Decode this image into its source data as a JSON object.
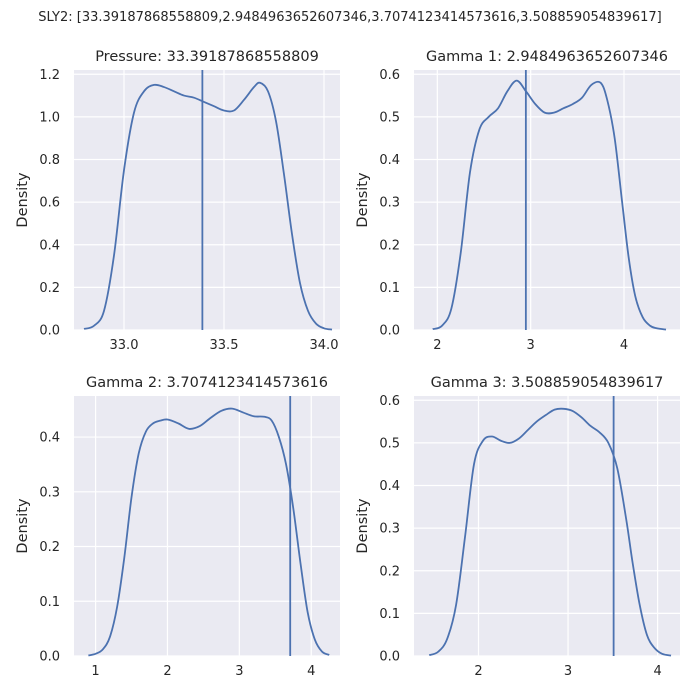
{
  "suptitle": "SLY2: [33.39187868558809,2.9484963652607346,3.7074123414573616,3.508859054839617]",
  "style": {
    "panel_bg": "#eaeaf2",
    "grid": "#ffffff",
    "line": "#4c72b0",
    "text": "#262626"
  },
  "chart_data": [
    {
      "type": "line",
      "title": "Pressure: 33.39187868558809",
      "xlabel": "",
      "ylabel": "Density",
      "xlim": [
        32.75,
        34.08
      ],
      "ylim": [
        0,
        1.22
      ],
      "xticks": [
        33.0,
        33.5,
        34.0
      ],
      "xtick_labels": [
        "33.0",
        "33.5",
        "34.0"
      ],
      "yticks": [
        0,
        0.2,
        0.4,
        0.6,
        0.8,
        1.0,
        1.2
      ],
      "ytick_labels": [
        "0.0",
        "0.2",
        "0.4",
        "0.6",
        "0.8",
        "1.0",
        "1.2"
      ],
      "grid": true,
      "vline": 33.39187868558809,
      "series": [
        {
          "x": [
            32.8,
            32.85,
            32.9,
            32.95,
            33.0,
            33.05,
            33.1,
            33.15,
            33.2,
            33.25,
            33.3,
            33.35,
            33.4,
            33.45,
            33.5,
            33.55,
            33.6,
            33.65,
            33.68,
            33.72,
            33.76,
            33.8,
            33.84,
            33.88,
            33.92,
            33.96,
            34.0,
            34.04
          ],
          "y": [
            0.005,
            0.02,
            0.09,
            0.35,
            0.75,
            1.02,
            1.12,
            1.15,
            1.14,
            1.12,
            1.1,
            1.09,
            1.07,
            1.05,
            1.03,
            1.03,
            1.08,
            1.14,
            1.16,
            1.12,
            0.98,
            0.73,
            0.45,
            0.22,
            0.09,
            0.03,
            0.008,
            0.002
          ]
        }
      ]
    },
    {
      "type": "line",
      "title": "Gamma 1: 2.9484963652607346",
      "xlabel": "",
      "ylabel": "Density",
      "xlim": [
        1.75,
        4.6
      ],
      "ylim": [
        0,
        0.61
      ],
      "xticks": [
        2,
        3,
        4
      ],
      "xtick_labels": [
        "2",
        "3",
        "4"
      ],
      "yticks": [
        0,
        0.1,
        0.2,
        0.3,
        0.4,
        0.5,
        0.6
      ],
      "ytick_labels": [
        "0.0",
        "0.1",
        "0.2",
        "0.3",
        "0.4",
        "0.5",
        "0.6"
      ],
      "grid": true,
      "vline": 2.9484963652607346,
      "series": [
        {
          "x": [
            1.95,
            2.05,
            2.15,
            2.25,
            2.35,
            2.45,
            2.55,
            2.65,
            2.75,
            2.85,
            2.95,
            3.05,
            3.15,
            3.25,
            3.35,
            3.45,
            3.55,
            3.65,
            3.75,
            3.82,
            3.9,
            3.98,
            4.05,
            4.12,
            4.2,
            4.28,
            4.35,
            4.45
          ],
          "y": [
            0.002,
            0.01,
            0.05,
            0.18,
            0.37,
            0.47,
            0.5,
            0.52,
            0.56,
            0.585,
            0.56,
            0.53,
            0.51,
            0.51,
            0.52,
            0.53,
            0.545,
            0.575,
            0.58,
            0.54,
            0.45,
            0.3,
            0.17,
            0.08,
            0.03,
            0.01,
            0.004,
            0.001
          ]
        }
      ]
    },
    {
      "type": "line",
      "title": "Gamma 2: 3.7074123414573616",
      "xlabel": "",
      "ylabel": "Density",
      "xlim": [
        0.7,
        4.4
      ],
      "ylim": [
        0,
        0.475
      ],
      "xticks": [
        1,
        2,
        3,
        4
      ],
      "xtick_labels": [
        "1",
        "2",
        "3",
        "4"
      ],
      "yticks": [
        0,
        0.1,
        0.2,
        0.3,
        0.4
      ],
      "ytick_labels": [
        "0.0",
        "0.1",
        "0.2",
        "0.3",
        "0.4"
      ],
      "grid": true,
      "vline": 3.7074123414573616,
      "series": [
        {
          "x": [
            0.9,
            1.0,
            1.1,
            1.2,
            1.3,
            1.4,
            1.5,
            1.6,
            1.7,
            1.8,
            1.9,
            2.0,
            2.15,
            2.3,
            2.45,
            2.6,
            2.75,
            2.9,
            3.05,
            3.2,
            3.35,
            3.45,
            3.55,
            3.65,
            3.75,
            3.85,
            3.95,
            4.05,
            4.15,
            4.25
          ],
          "y": [
            0.001,
            0.004,
            0.012,
            0.035,
            0.09,
            0.18,
            0.29,
            0.37,
            0.41,
            0.425,
            0.43,
            0.432,
            0.425,
            0.415,
            0.42,
            0.435,
            0.448,
            0.452,
            0.445,
            0.438,
            0.437,
            0.43,
            0.4,
            0.35,
            0.27,
            0.17,
            0.08,
            0.03,
            0.008,
            0.002
          ]
        }
      ]
    },
    {
      "type": "line",
      "title": "Gamma 3: 3.508859054839617",
      "xlabel": "",
      "ylabel": "Density",
      "xlim": [
        1.28,
        4.25
      ],
      "ylim": [
        0,
        0.61
      ],
      "xticks": [
        2,
        3,
        4
      ],
      "xtick_labels": [
        "2",
        "3",
        "4"
      ],
      "yticks": [
        0,
        0.1,
        0.2,
        0.3,
        0.4,
        0.5,
        0.6
      ],
      "ytick_labels": [
        "0.0",
        "0.1",
        "0.2",
        "0.3",
        "0.4",
        "0.5",
        "0.6"
      ],
      "grid": true,
      "vline": 3.508859054839617,
      "series": [
        {
          "x": [
            1.45,
            1.55,
            1.65,
            1.75,
            1.85,
            1.95,
            2.05,
            2.15,
            2.25,
            2.35,
            2.45,
            2.55,
            2.65,
            2.75,
            2.85,
            2.95,
            3.05,
            3.15,
            3.25,
            3.35,
            3.45,
            3.55,
            3.65,
            3.72,
            3.8,
            3.88,
            3.96,
            4.05,
            4.15
          ],
          "y": [
            0.002,
            0.01,
            0.04,
            0.12,
            0.28,
            0.45,
            0.505,
            0.515,
            0.505,
            0.5,
            0.51,
            0.53,
            0.55,
            0.565,
            0.578,
            0.58,
            0.575,
            0.56,
            0.54,
            0.525,
            0.5,
            0.44,
            0.32,
            0.22,
            0.12,
            0.05,
            0.02,
            0.005,
            0.001
          ]
        }
      ]
    }
  ]
}
